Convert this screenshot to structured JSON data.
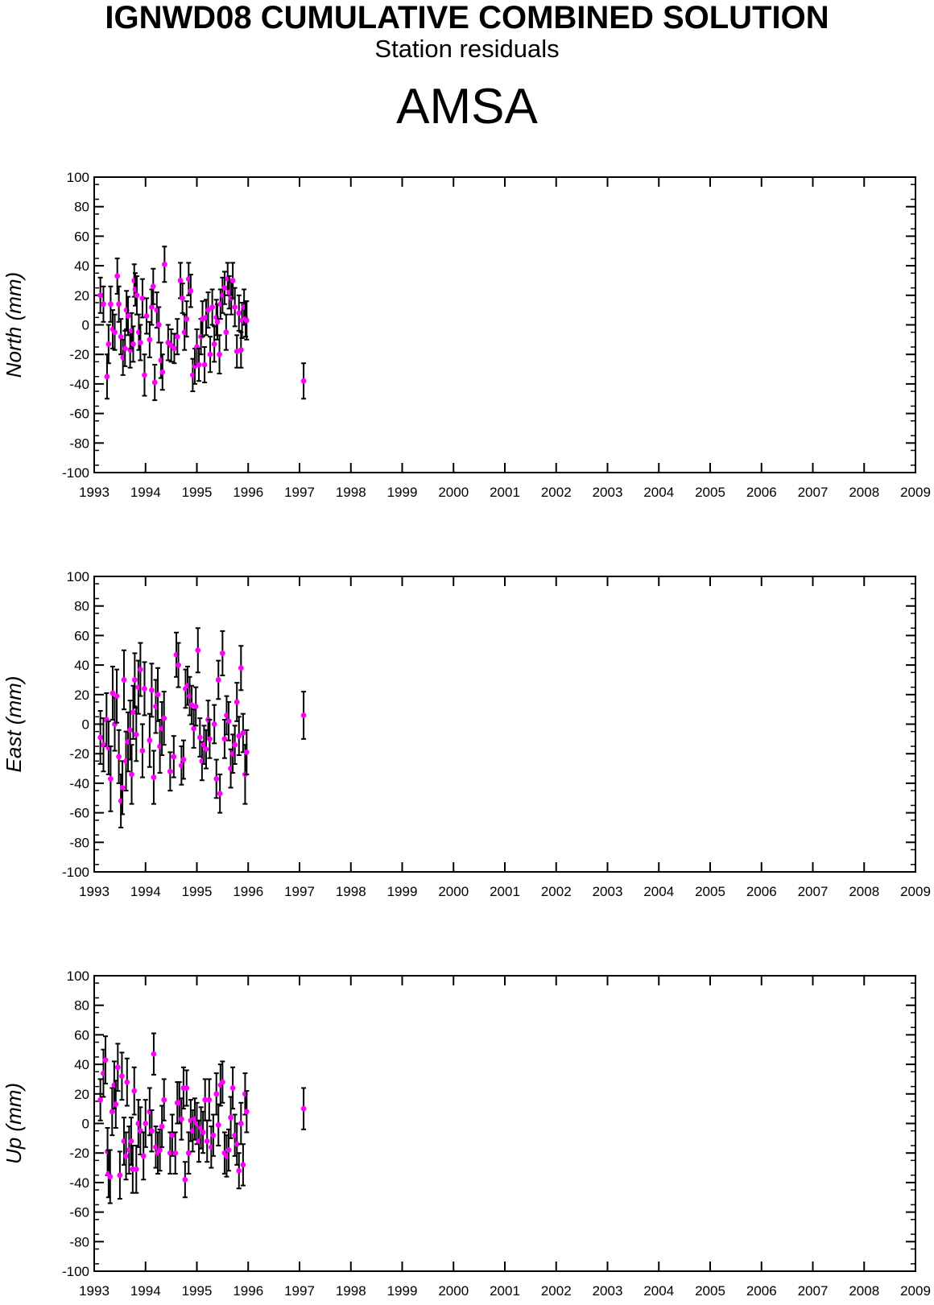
{
  "header": {
    "title": "IGNWD08 CUMULATIVE COMBINED SOLUTION",
    "subtitle": "Station residuals",
    "station": "AMSA"
  },
  "colors": {
    "marker": "#ff00ff",
    "errorbar": "#000000",
    "axes": "#000000"
  },
  "chart_data": [
    {
      "type": "scatter",
      "ylabel": "North (mm)",
      "xlim": [
        1993,
        2009
      ],
      "ylim": [
        -100,
        100
      ],
      "xticks": [
        "1993",
        "1994",
        "1995",
        "1996",
        "1997",
        "1998",
        "1999",
        "2000",
        "2001",
        "2002",
        "2003",
        "2004",
        "2005",
        "2006",
        "2007",
        "2008",
        "2009"
      ],
      "yticks": [
        "100",
        "80",
        "60",
        "40",
        "20",
        "0",
        "-20",
        "-40",
        "-60",
        "-80",
        "-100"
      ],
      "error_bars": true,
      "points": [
        [
          1993.12,
          20,
          12
        ],
        [
          1993.18,
          14,
          12
        ],
        [
          1993.25,
          -35,
          15
        ],
        [
          1993.28,
          -13,
          13
        ],
        [
          1993.32,
          14,
          12
        ],
        [
          1993.36,
          -3,
          13
        ],
        [
          1993.4,
          -5,
          12
        ],
        [
          1993.45,
          33,
          12
        ],
        [
          1993.48,
          14,
          12
        ],
        [
          1993.52,
          -8,
          12
        ],
        [
          1993.56,
          -22,
          12
        ],
        [
          1993.6,
          -16,
          12
        ],
        [
          1993.63,
          10,
          13
        ],
        [
          1993.66,
          6,
          13
        ],
        [
          1993.7,
          -17,
          12
        ],
        [
          1993.73,
          -4,
          12
        ],
        [
          1993.76,
          -13,
          12
        ],
        [
          1993.78,
          30,
          11
        ],
        [
          1993.8,
          24,
          11
        ],
        [
          1993.83,
          20,
          13
        ],
        [
          1993.87,
          -5,
          12
        ],
        [
          1993.9,
          -12,
          12
        ],
        [
          1993.94,
          18,
          13
        ],
        [
          1993.98,
          -34,
          14
        ],
        [
          1994.02,
          6,
          12
        ],
        [
          1994.08,
          -10,
          12
        ],
        [
          1994.12,
          12,
          12
        ],
        [
          1994.15,
          26,
          12
        ],
        [
          1994.18,
          -39,
          12
        ],
        [
          1994.22,
          10,
          12
        ],
        [
          1994.26,
          0,
          12
        ],
        [
          1994.3,
          -24,
          12
        ],
        [
          1994.33,
          -32,
          12
        ],
        [
          1994.37,
          41,
          12
        ],
        [
          1994.44,
          -12,
          12
        ],
        [
          1994.5,
          -14,
          11
        ],
        [
          1994.56,
          -16,
          10
        ],
        [
          1994.62,
          -8,
          12
        ],
        [
          1994.68,
          30,
          12
        ],
        [
          1994.72,
          18,
          10
        ],
        [
          1994.76,
          -5,
          12
        ],
        [
          1994.8,
          4,
          12
        ],
        [
          1994.84,
          31,
          11
        ],
        [
          1994.88,
          23,
          11
        ],
        [
          1994.92,
          -34,
          11
        ],
        [
          1994.96,
          -28,
          12
        ],
        [
          1995.0,
          -15,
          12
        ],
        [
          1995.04,
          -27,
          11
        ],
        [
          1995.08,
          -8,
          12
        ],
        [
          1995.11,
          4,
          12
        ],
        [
          1995.15,
          -27,
          12
        ],
        [
          1995.18,
          5,
          12
        ],
        [
          1995.22,
          10,
          12
        ],
        [
          1995.26,
          -20,
          12
        ],
        [
          1995.3,
          12,
          12
        ],
        [
          1995.34,
          -13,
          12
        ],
        [
          1995.38,
          5,
          12
        ],
        [
          1995.4,
          2,
          12
        ],
        [
          1995.44,
          -20,
          13
        ],
        [
          1995.46,
          14,
          10
        ],
        [
          1995.5,
          20,
          12
        ],
        [
          1995.54,
          25,
          11
        ],
        [
          1995.57,
          -5,
          12
        ],
        [
          1995.6,
          31,
          11
        ],
        [
          1995.63,
          22,
          11
        ],
        [
          1995.67,
          18,
          11
        ],
        [
          1995.7,
          30,
          12
        ],
        [
          1995.74,
          12,
          13
        ],
        [
          1995.78,
          -18,
          11
        ],
        [
          1995.82,
          8,
          12
        ],
        [
          1995.86,
          -17,
          12
        ],
        [
          1995.88,
          3,
          12
        ],
        [
          1995.92,
          12,
          12
        ],
        [
          1995.95,
          4,
          12
        ],
        [
          1995.97,
          3,
          13
        ],
        [
          1997.08,
          -38,
          12
        ]
      ]
    },
    {
      "type": "scatter",
      "ylabel": "East (mm)",
      "xlim": [
        1993,
        2009
      ],
      "ylim": [
        -100,
        100
      ],
      "xticks": [
        "1993",
        "1994",
        "1995",
        "1996",
        "1997",
        "1998",
        "1999",
        "2000",
        "2001",
        "2002",
        "2003",
        "2004",
        "2005",
        "2006",
        "2007",
        "2008",
        "2009"
      ],
      "yticks": [
        "100",
        "80",
        "60",
        "40",
        "20",
        "0",
        "-20",
        "-40",
        "-60",
        "-80",
        "-100"
      ],
      "error_bars": true,
      "points": [
        [
          1993.12,
          -9,
          18
        ],
        [
          1993.18,
          -14,
          18
        ],
        [
          1993.24,
          3,
          18
        ],
        [
          1993.28,
          -16,
          18
        ],
        [
          1993.32,
          -37,
          22
        ],
        [
          1993.36,
          21,
          18
        ],
        [
          1993.4,
          0,
          18
        ],
        [
          1993.44,
          19,
          18
        ],
        [
          1993.48,
          -22,
          18
        ],
        [
          1993.52,
          -52,
          18
        ],
        [
          1993.55,
          -43,
          18
        ],
        [
          1993.58,
          30,
          20
        ],
        [
          1993.62,
          -25,
          20
        ],
        [
          1993.66,
          -12,
          20
        ],
        [
          1993.7,
          -4,
          20
        ],
        [
          1993.73,
          -34,
          20
        ],
        [
          1993.76,
          8,
          18
        ],
        [
          1993.79,
          30,
          18
        ],
        [
          1993.82,
          -7,
          18
        ],
        [
          1993.86,
          25,
          18
        ],
        [
          1993.9,
          37,
          18
        ],
        [
          1993.94,
          -18,
          18
        ],
        [
          1993.98,
          24,
          18
        ],
        [
          1994.08,
          -11,
          18
        ],
        [
          1994.12,
          23,
          18
        ],
        [
          1994.16,
          -36,
          18
        ],
        [
          1994.2,
          12,
          18
        ],
        [
          1994.24,
          20,
          18
        ],
        [
          1994.28,
          -15,
          18
        ],
        [
          1994.32,
          -3,
          18
        ],
        [
          1994.36,
          4,
          18
        ],
        [
          1994.48,
          -32,
          13
        ],
        [
          1994.55,
          -22,
          14
        ],
        [
          1994.6,
          47,
          15
        ],
        [
          1994.64,
          40,
          15
        ],
        [
          1994.7,
          -28,
          13
        ],
        [
          1994.74,
          -24,
          13
        ],
        [
          1994.78,
          24,
          13
        ],
        [
          1994.82,
          26,
          13
        ],
        [
          1994.86,
          19,
          13
        ],
        [
          1994.9,
          13,
          13
        ],
        [
          1994.94,
          -3,
          13
        ],
        [
          1994.98,
          12,
          13
        ],
        [
          1995.02,
          50,
          15
        ],
        [
          1995.06,
          -9,
          13
        ],
        [
          1995.1,
          -25,
          13
        ],
        [
          1995.14,
          -14,
          13
        ],
        [
          1995.18,
          -17,
          13
        ],
        [
          1995.22,
          3,
          13
        ],
        [
          1995.25,
          -10,
          13
        ],
        [
          1995.34,
          0,
          13
        ],
        [
          1995.38,
          -37,
          13
        ],
        [
          1995.42,
          30,
          13
        ],
        [
          1995.45,
          -47,
          13
        ],
        [
          1995.5,
          48,
          15
        ],
        [
          1995.54,
          -10,
          13
        ],
        [
          1995.58,
          6,
          13
        ],
        [
          1995.62,
          2,
          13
        ],
        [
          1995.66,
          -30,
          13
        ],
        [
          1995.7,
          -20,
          13
        ],
        [
          1995.74,
          -14,
          13
        ],
        [
          1995.78,
          15,
          13
        ],
        [
          1995.82,
          -8,
          13
        ],
        [
          1995.86,
          38,
          15
        ],
        [
          1995.9,
          -6,
          13
        ],
        [
          1995.94,
          -34,
          20
        ],
        [
          1995.97,
          -19,
          15
        ],
        [
          1997.08,
          6,
          16
        ]
      ]
    },
    {
      "type": "scatter",
      "ylabel": "Up (mm)",
      "xlim": [
        1993,
        2009
      ],
      "ylim": [
        -100,
        100
      ],
      "xticks": [
        "1993",
        "1994",
        "1995",
        "1996",
        "1997",
        "1998",
        "1999",
        "2000",
        "2001",
        "2002",
        "2003",
        "2004",
        "2005",
        "2006",
        "2007",
        "2008",
        "2009"
      ],
      "yticks": [
        "100",
        "80",
        "60",
        "40",
        "20",
        "0",
        "-20",
        "-40",
        "-60",
        "-80",
        "-100"
      ],
      "error_bars": true,
      "points": [
        [
          1993.12,
          16,
          14
        ],
        [
          1993.18,
          34,
          16
        ],
        [
          1993.22,
          43,
          16
        ],
        [
          1993.26,
          -19,
          16
        ],
        [
          1993.28,
          -34,
          16
        ],
        [
          1993.31,
          -36,
          18
        ],
        [
          1993.35,
          8,
          16
        ],
        [
          1993.39,
          26,
          16
        ],
        [
          1993.42,
          13,
          16
        ],
        [
          1993.46,
          38,
          16
        ],
        [
          1993.5,
          -35,
          16
        ],
        [
          1993.54,
          32,
          16
        ],
        [
          1993.58,
          -12,
          16
        ],
        [
          1993.62,
          -22,
          16
        ],
        [
          1993.64,
          28,
          16
        ],
        [
          1993.68,
          -18,
          16
        ],
        [
          1993.72,
          -12,
          16
        ],
        [
          1993.75,
          -31,
          16
        ],
        [
          1993.78,
          22,
          16
        ],
        [
          1993.82,
          -31,
          16
        ],
        [
          1993.86,
          0,
          16
        ],
        [
          1993.9,
          -5,
          16
        ],
        [
          1993.96,
          -22,
          16
        ],
        [
          1994.0,
          0,
          16
        ],
        [
          1994.08,
          8,
          16
        ],
        [
          1994.12,
          -5,
          14
        ],
        [
          1994.16,
          47,
          14
        ],
        [
          1994.2,
          -16,
          14
        ],
        [
          1994.24,
          -20,
          14
        ],
        [
          1994.28,
          -18,
          14
        ],
        [
          1994.32,
          -2,
          14
        ],
        [
          1994.36,
          16,
          14
        ],
        [
          1994.48,
          -20,
          14
        ],
        [
          1994.52,
          -8,
          14
        ],
        [
          1994.58,
          -20,
          14
        ],
        [
          1994.62,
          14,
          14
        ],
        [
          1994.66,
          14,
          14
        ],
        [
          1994.7,
          3,
          14
        ],
        [
          1994.74,
          24,
          14
        ],
        [
          1994.77,
          -38,
          12
        ],
        [
          1994.8,
          24,
          12
        ],
        [
          1994.84,
          -20,
          14
        ],
        [
          1994.88,
          2,
          14
        ],
        [
          1994.92,
          -5,
          14
        ],
        [
          1994.96,
          3,
          14
        ],
        [
          1995.0,
          0,
          14
        ],
        [
          1995.04,
          -12,
          14
        ],
        [
          1995.08,
          -3,
          14
        ],
        [
          1995.12,
          -6,
          14
        ],
        [
          1995.16,
          16,
          14
        ],
        [
          1995.2,
          -12,
          14
        ],
        [
          1995.24,
          16,
          14
        ],
        [
          1995.28,
          -16,
          14
        ],
        [
          1995.32,
          -8,
          14
        ],
        [
          1995.38,
          20,
          14
        ],
        [
          1995.42,
          -1,
          14
        ],
        [
          1995.46,
          26,
          14
        ],
        [
          1995.5,
          28,
          14
        ],
        [
          1995.54,
          -20,
          14
        ],
        [
          1995.58,
          -22,
          14
        ],
        [
          1995.62,
          -18,
          14
        ],
        [
          1995.66,
          4,
          14
        ],
        [
          1995.7,
          24,
          14
        ],
        [
          1995.74,
          -8,
          14
        ],
        [
          1995.78,
          -14,
          14
        ],
        [
          1995.82,
          -32,
          12
        ],
        [
          1995.86,
          0,
          14
        ],
        [
          1995.9,
          -28,
          14
        ],
        [
          1995.94,
          20,
          14
        ],
        [
          1995.97,
          8,
          14
        ],
        [
          1997.08,
          10,
          14
        ]
      ]
    }
  ]
}
